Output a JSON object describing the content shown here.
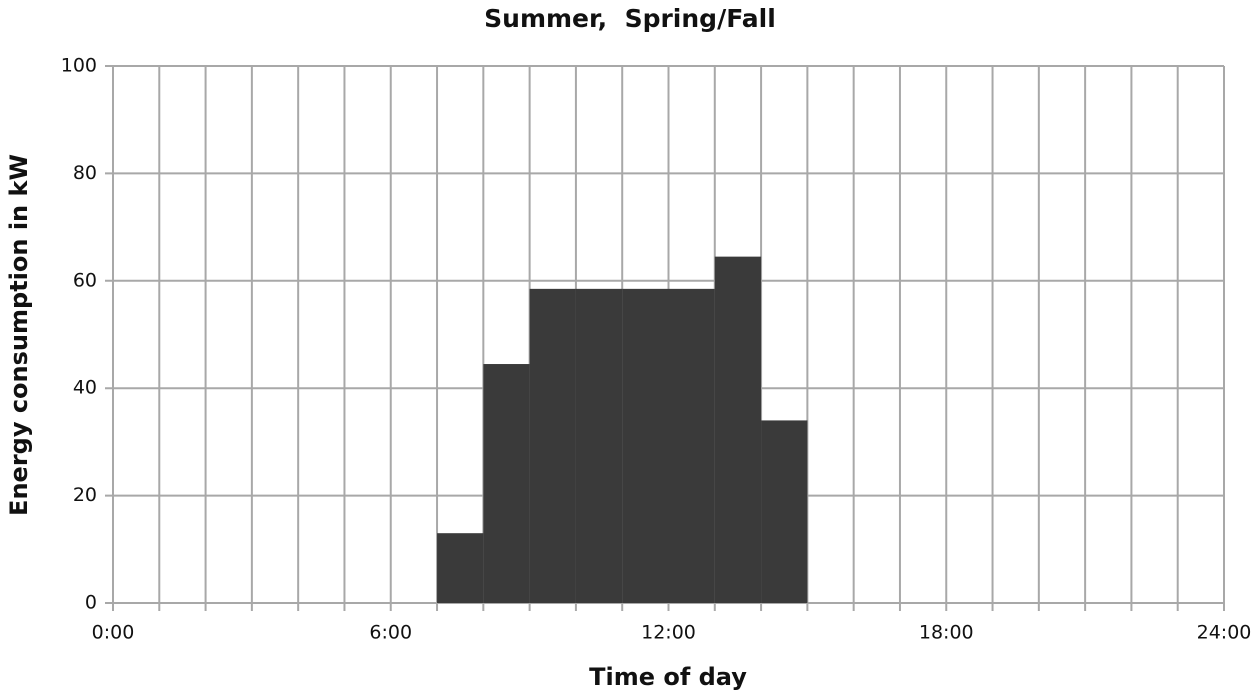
{
  "chart_data": {
    "type": "histogram",
    "title": "Summer,  Spring/Fall",
    "xlabel": "Time of day",
    "ylabel": "Energy consumption in kW",
    "bins": [
      7,
      8,
      9,
      10,
      11,
      12,
      13,
      14,
      15
    ],
    "values": [
      13,
      44.5,
      58.5,
      58.5,
      58.5,
      58.5,
      64.5,
      34
    ],
    "color": "#3a3a3a",
    "xlim": [
      0,
      24
    ],
    "xticks": [
      {
        "value": 0,
        "label": "0:00"
      },
      {
        "value": 6,
        "label": "6:00"
      },
      {
        "value": 12,
        "label": "12:00"
      },
      {
        "value": 18,
        "label": "18:00"
      },
      {
        "value": 24,
        "label": "24:00"
      }
    ],
    "xminorticks": [
      1,
      2,
      3,
      4,
      5,
      7,
      8,
      9,
      10,
      11,
      13,
      14,
      15,
      16,
      17,
      19,
      20,
      21,
      22,
      23
    ],
    "ylim": [
      0,
      100
    ],
    "yticks": [
      0,
      20,
      40,
      60,
      80,
      100
    ],
    "grid": true
  }
}
